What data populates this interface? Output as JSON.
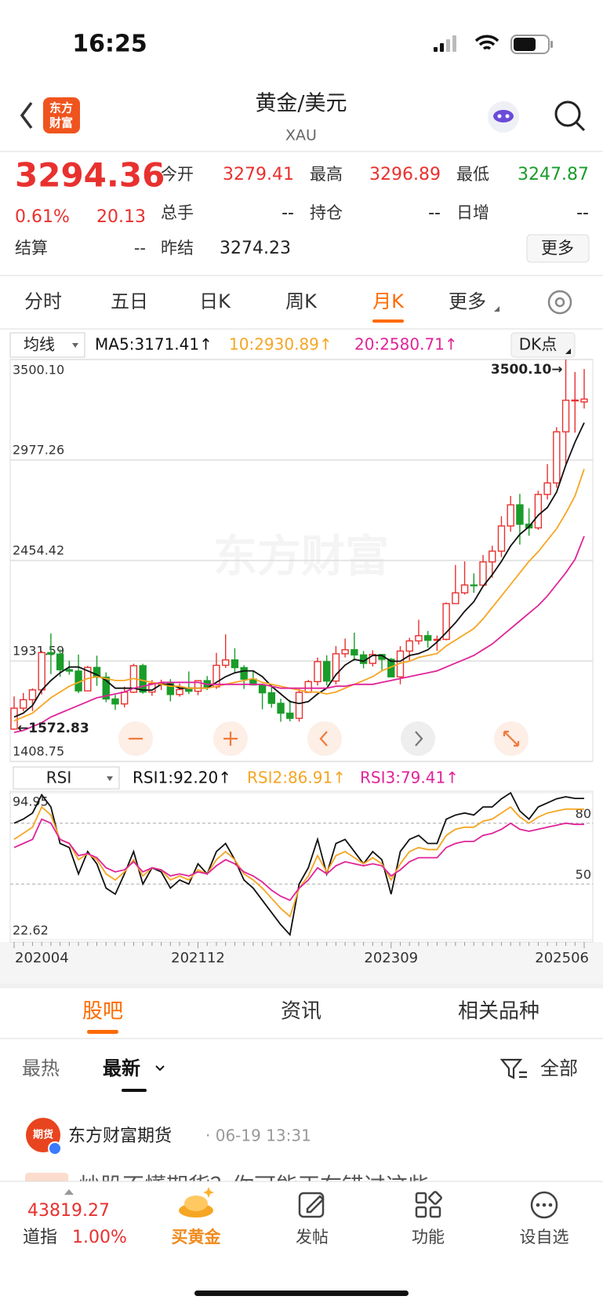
{
  "status_bar": {
    "time": "16:25"
  },
  "header": {
    "logo": [
      "东方",
      "财富"
    ],
    "title": "黄金/美元",
    "subtitle": "XAU"
  },
  "quote": {
    "price": "3294.36",
    "change_pct": "0.61%",
    "change": "20.13",
    "settle_label": "结算",
    "settle": "--",
    "grid": [
      [
        {
          "label": "今开",
          "value": "3279.41",
          "color": "#e8312f"
        },
        {
          "label": "最高",
          "value": "3296.89",
          "color": "#e8312f"
        },
        {
          "label": "最低",
          "value": "3247.87",
          "color": "#1a9c2a"
        }
      ],
      [
        {
          "label": "总手",
          "value": "--"
        },
        {
          "label": "持仓",
          "value": "--"
        },
        {
          "label": "日增",
          "value": "--"
        }
      ],
      [
        {
          "label": "昨结",
          "value": "3274.23"
        }
      ]
    ],
    "more": "更多"
  },
  "period_tabs": {
    "items": [
      "分时",
      "五日",
      "日K",
      "周K",
      "月K",
      "更多"
    ],
    "active": 4
  },
  "chart_data": [
    {
      "type": "candlestick",
      "selector": "均线",
      "dk_label": "DK点",
      "watermark": "东方财富",
      "max_label": "3500.10→",
      "min_label": "←1572.83",
      "up_color": "#e8312f",
      "down_color": "#1a9c2a",
      "ylim": [
        1408.75,
        3500.1
      ],
      "yticks": [
        1408.75,
        1931.59,
        2454.42,
        2977.26,
        {
          "value": 3500.1,
          "label": "3500.10"
        }
      ],
      "grid": true,
      "opens": [
        1577,
        1686,
        1730,
        1781,
        1975,
        1967,
        1886,
        1879,
        1776,
        1898,
        1847,
        1734,
        1708,
        1769,
        1907,
        1770,
        1814,
        1814,
        1757,
        1783,
        1774,
        1829,
        1797,
        1909,
        1937,
        1897,
        1837,
        1807,
        1766,
        1711,
        1660,
        1633,
        1768,
        1824,
        1928,
        1827,
        1969,
        1990,
        1963,
        1919,
        1965,
        1940,
        1849,
        1983,
        2036,
        2063,
        2039,
        2044,
        2230,
        2286,
        2327,
        2326,
        2447,
        2503,
        2634,
        2744,
        2643,
        2624,
        2798,
        2858,
        3124,
        3288,
        3279.41
      ],
      "highs": [
        1747,
        1765,
        1789,
        1984,
        2075,
        1992,
        1933,
        1965,
        1906,
        1959,
        1872,
        1755,
        1798,
        1917,
        1917,
        1832,
        1834,
        1837,
        1814,
        1877,
        1831,
        1853,
        1974,
        2070,
        1998,
        1910,
        1879,
        1814,
        1807,
        1735,
        1729,
        1786,
        1833,
        1949,
        1961,
        2009,
        2048,
        2079,
        1983,
        1987,
        1966,
        1947,
        2009,
        2052,
        2146,
        2088,
        2064,
        2236,
        2431,
        2450,
        2387,
        2483,
        2531,
        2685,
        2790,
        2801,
        2726,
        2817,
        2956,
        3148,
        3500.1,
        3435,
        3451
      ],
      "lows": [
        1572.83,
        1670,
        1671,
        1757,
        1863,
        1849,
        1860,
        1764,
        1776,
        1802,
        1717,
        1677,
        1690,
        1765,
        1761,
        1750,
        1780,
        1721,
        1746,
        1759,
        1753,
        1780,
        1786,
        1895,
        1872,
        1786,
        1805,
        1680,
        1688,
        1615,
        1617,
        1616,
        1765,
        1804,
        1804,
        1809,
        1950,
        1932,
        1893,
        1903,
        1884,
        1848,
        1810,
        1931,
        2017,
        2001,
        1984,
        2039,
        2229,
        2277,
        2286,
        2353,
        2365,
        2472,
        2604,
        2537,
        2583,
        2614,
        2772,
        2833,
        2957,
        3120,
        3245
      ],
      "closes": [
        1686,
        1730,
        1781,
        1975,
        1967,
        1886,
        1879,
        1776,
        1898,
        1847,
        1734,
        1708,
        1769,
        1907,
        1770,
        1814,
        1814,
        1757,
        1783,
        1774,
        1829,
        1797,
        1909,
        1937,
        1897,
        1837,
        1807,
        1766,
        1711,
        1660,
        1633,
        1768,
        1824,
        1928,
        1827,
        1969,
        1990,
        1963,
        1919,
        1965,
        1940,
        1849,
        1983,
        2036,
        2063,
        2039,
        2044,
        2230,
        2286,
        2327,
        2326,
        2447,
        2503,
        2634,
        2744,
        2643,
        2624,
        2798,
        2858,
        3124,
        3288,
        3289,
        3294.36
      ],
      "series": [
        {
          "name": "MA5:3171.41↑",
          "color": "#111111",
          "values": [
            1640,
            1660,
            1700,
            1780,
            1830,
            1870,
            1900,
            1900,
            1880,
            1860,
            1830,
            1790,
            1790,
            1790,
            1780,
            1780,
            1810,
            1810,
            1790,
            1790,
            1790,
            1790,
            1820,
            1850,
            1870,
            1880,
            1880,
            1850,
            1800,
            1760,
            1720,
            1710,
            1720,
            1760,
            1790,
            1860,
            1910,
            1940,
            1930,
            1960,
            1960,
            1930,
            1930,
            1960,
            1970,
            1990,
            2030,
            2080,
            2130,
            2190,
            2240,
            2320,
            2380,
            2450,
            2530,
            2590,
            2630,
            2690,
            2730,
            2810,
            2950,
            3070,
            3171.41
          ]
        },
        {
          "name": "10:2930.89↑",
          "color": "#f5a623",
          "values": [
            1620,
            1640,
            1660,
            1700,
            1740,
            1770,
            1800,
            1820,
            1840,
            1850,
            1840,
            1830,
            1830,
            1840,
            1830,
            1820,
            1810,
            1800,
            1800,
            1790,
            1790,
            1790,
            1800,
            1810,
            1820,
            1830,
            1840,
            1820,
            1810,
            1800,
            1790,
            1780,
            1770,
            1770,
            1760,
            1770,
            1790,
            1810,
            1830,
            1850,
            1880,
            1900,
            1920,
            1930,
            1950,
            1960,
            1970,
            2010,
            2040,
            2070,
            2100,
            2150,
            2210,
            2270,
            2330,
            2390,
            2450,
            2500,
            2560,
            2620,
            2700,
            2790,
            2930.89
          ]
        },
        {
          "name": "20:2580.71↑",
          "color": "#e0249a",
          "values": [
            1560,
            1570,
            1590,
            1610,
            1640,
            1660,
            1680,
            1700,
            1720,
            1740,
            1750,
            1760,
            1770,
            1790,
            1800,
            1810,
            1820,
            1820,
            1820,
            1820,
            1820,
            1810,
            1810,
            1810,
            1810,
            1810,
            1810,
            1810,
            1800,
            1790,
            1790,
            1790,
            1790,
            1790,
            1790,
            1800,
            1800,
            1810,
            1810,
            1810,
            1820,
            1830,
            1840,
            1850,
            1860,
            1870,
            1880,
            1900,
            1920,
            1940,
            1960,
            1990,
            2020,
            2060,
            2100,
            2140,
            2180,
            2220,
            2270,
            2330,
            2390,
            2460,
            2580.71
          ]
        }
      ]
    },
    {
      "type": "line",
      "selector": "RSI",
      "categories": [
        "202004",
        null,
        null,
        null,
        null,
        null,
        null,
        null,
        null,
        null,
        null,
        null,
        null,
        null,
        null,
        null,
        null,
        null,
        null,
        null,
        "202112",
        null,
        null,
        null,
        null,
        null,
        null,
        null,
        null,
        null,
        null,
        null,
        null,
        null,
        null,
        null,
        null,
        null,
        null,
        null,
        null,
        "202309",
        null,
        null,
        null,
        null,
        null,
        null,
        null,
        null,
        null,
        null,
        null,
        null,
        null,
        null,
        null,
        null,
        null,
        null,
        null,
        null,
        "202506"
      ],
      "ylim": [
        22.62,
        94.95
      ],
      "yticks": [
        22.62,
        50,
        80,
        94.95
      ],
      "series": [
        {
          "name": "RSI1:92.20↑",
          "color": "#111111",
          "values": [
            80,
            82,
            85,
            94,
            88,
            70,
            68,
            55,
            66,
            60,
            48,
            45,
            55,
            66,
            50,
            58,
            56,
            48,
            52,
            50,
            60,
            55,
            66,
            70,
            62,
            52,
            48,
            42,
            36,
            30,
            25,
            50,
            58,
            72,
            55,
            70,
            72,
            66,
            60,
            66,
            62,
            45,
            66,
            72,
            74,
            70,
            70,
            82,
            84,
            85,
            84,
            88,
            88,
            92,
            94.95,
            86,
            82,
            88,
            90,
            92,
            93,
            92.2,
            92.2
          ]
        },
        {
          "name": "RSI2:86.91↑",
          "color": "#f5a623",
          "values": [
            72,
            75,
            78,
            88,
            84,
            72,
            70,
            62,
            65,
            62,
            55,
            52,
            56,
            62,
            54,
            58,
            57,
            52,
            54,
            52,
            57,
            55,
            62,
            66,
            62,
            55,
            52,
            48,
            43,
            38,
            34,
            48,
            54,
            64,
            56,
            64,
            66,
            63,
            60,
            63,
            60,
            52,
            60,
            66,
            68,
            67,
            67,
            74,
            77,
            78,
            78,
            81,
            82,
            85,
            88,
            83,
            80,
            83,
            85,
            86,
            87,
            86.9,
            86.91
          ]
        },
        {
          "name": "RSI3:79.41↑",
          "color": "#e0249a",
          "values": [
            68,
            70,
            72,
            82,
            80,
            72,
            70,
            64,
            65,
            63,
            58,
            56,
            57,
            61,
            56,
            58,
            57,
            54,
            55,
            54,
            56,
            55,
            59,
            62,
            60,
            56,
            54,
            51,
            47,
            44,
            42,
            48,
            52,
            58,
            55,
            59,
            61,
            60,
            59,
            60,
            59,
            54,
            57,
            61,
            63,
            63,
            63,
            68,
            70,
            71,
            71,
            74,
            75,
            77,
            80,
            77,
            76,
            77,
            78,
            79,
            80,
            79.4,
            79.41
          ]
        }
      ]
    }
  ],
  "feed": {
    "tabs": [
      "股吧",
      "资讯",
      "相关品种"
    ],
    "sort": [
      "最热",
      "最新"
    ],
    "filter": "全部",
    "post": {
      "avatar": "期货",
      "author": "东方财富期货",
      "time": "· 06-19 13:31",
      "text": "炒股不懂期货？你可能正在错过这些"
    }
  },
  "bottom_bar": {
    "index_value": "43819.27",
    "index_name": "道指",
    "index_change": "1.00%",
    "items": [
      "买黄金",
      "发帖",
      "功能",
      "设自选"
    ]
  }
}
